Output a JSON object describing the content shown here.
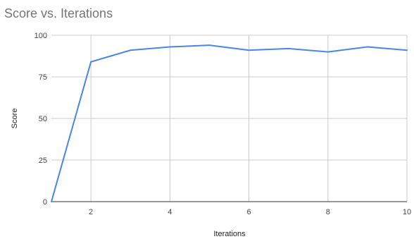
{
  "chart_data": {
    "type": "line",
    "title": "Score vs. Iterations",
    "xlabel": "Iterations",
    "ylabel": "Score",
    "xlim": [
      1,
      10
    ],
    "ylim": [
      0,
      100
    ],
    "xticks": [
      2,
      4,
      6,
      8,
      10
    ],
    "yticks": [
      0,
      25,
      50,
      75,
      100
    ],
    "grid": true,
    "legend": "none",
    "series": [
      {
        "color": "#4a86e8",
        "x": [
          1,
          2,
          3,
          4,
          5,
          6,
          7,
          8,
          9,
          10
        ],
        "y": [
          0,
          84,
          91,
          93,
          94,
          91,
          92,
          90,
          93,
          91
        ]
      }
    ]
  }
}
